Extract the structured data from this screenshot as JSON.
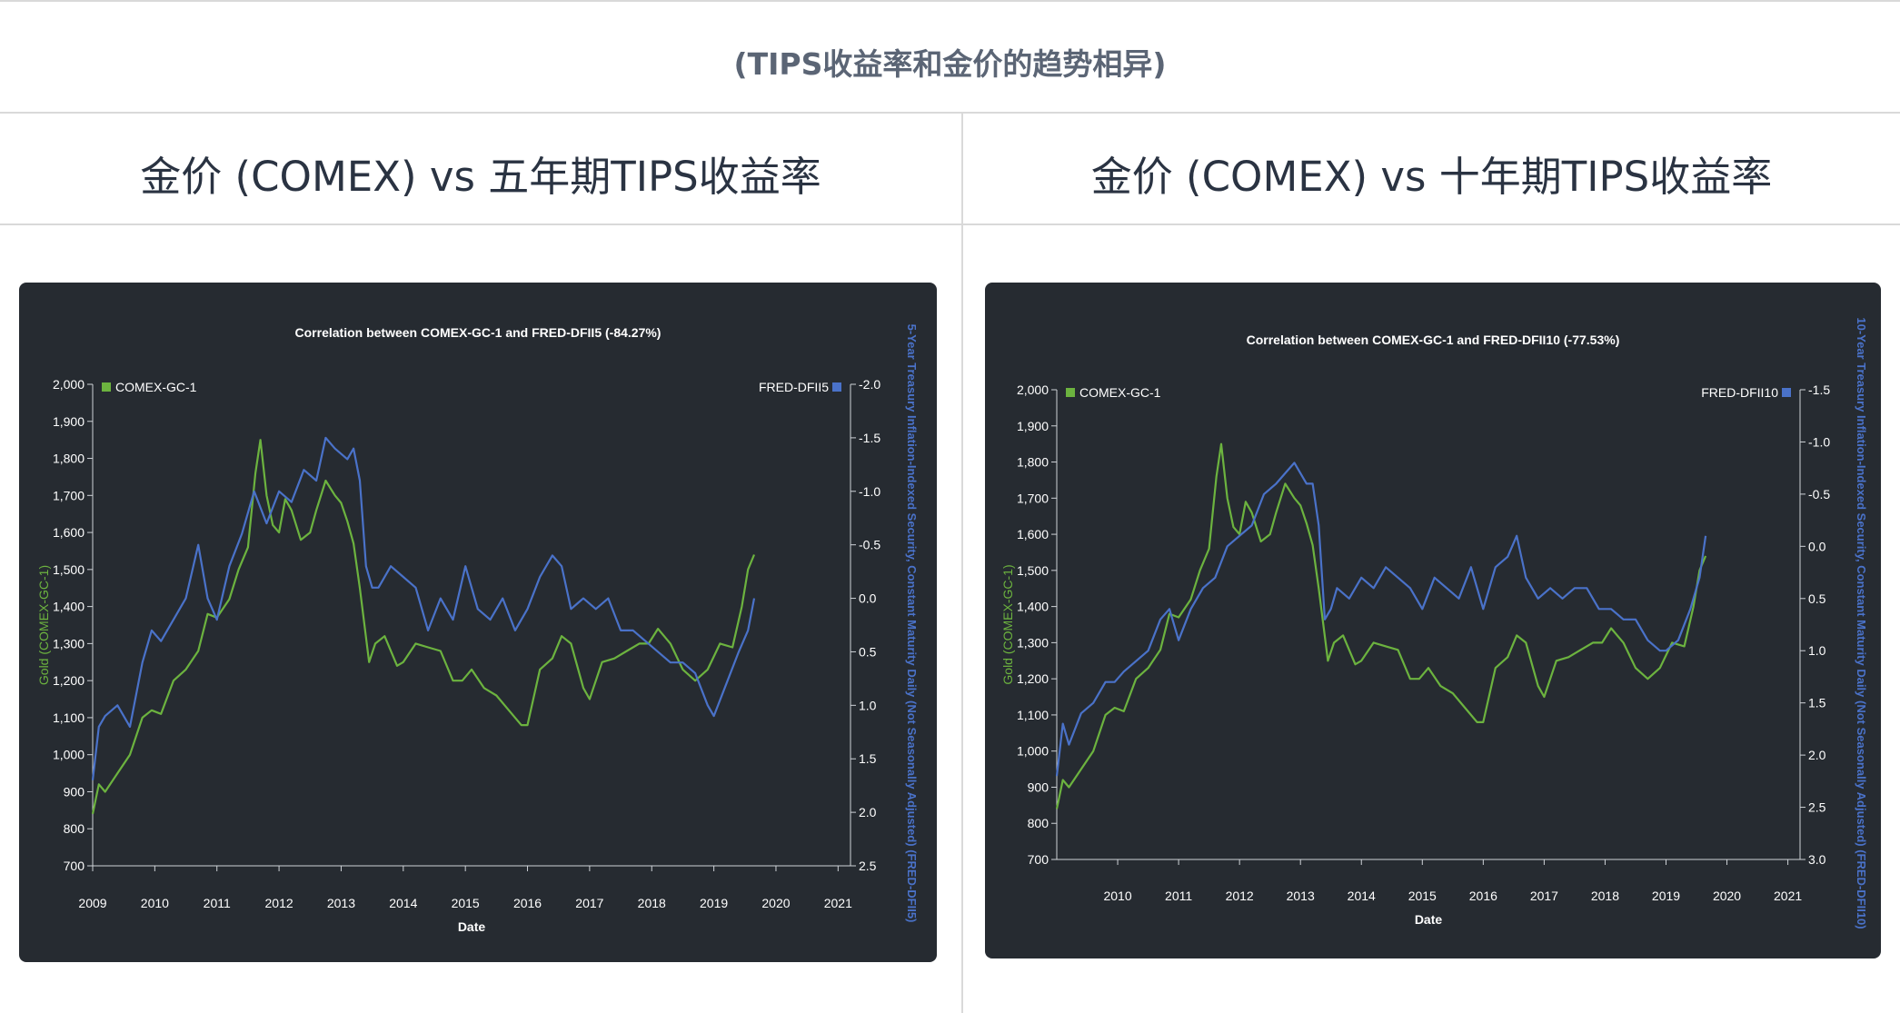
{
  "page": {
    "title": "(TIPS收益率和金价的趋势相异)"
  },
  "columns": [
    {
      "title": "金价 (COMEX) vs 五年期TIPS收益率"
    },
    {
      "title": "金价 (COMEX) vs 十年期TIPS收益率"
    }
  ],
  "colors": {
    "gold": "#6cb33f",
    "tips": "#4a72c9",
    "panel_bg": "#262b31",
    "axis_text": "#ffffff"
  },
  "chart_data": [
    {
      "type": "line",
      "title": "Correlation between COMEX-GC-1 and FRED-DFII5 (-84.27%)",
      "xlabel": "Date",
      "ylabel_left": "Gold (COMEX-GC-1)",
      "ylabel_right": "5-Year Treasury Inflation-Indexed Security, Constant Maturity Daily (Not Seasonally Adjusted) (FRED-DFII5)",
      "x_ticks": [
        "2009",
        "2010",
        "2011",
        "2012",
        "2013",
        "2014",
        "2015",
        "2016",
        "2017",
        "2018",
        "2019",
        "2020",
        "2021"
      ],
      "xlim": [
        2009,
        2021.2
      ],
      "y_left": {
        "ticks": [
          "2,000",
          "1,900",
          "1,800",
          "1,700",
          "1,600",
          "1,500",
          "1,400",
          "1,300",
          "1,200",
          "1,100",
          "1,000",
          "900",
          "800",
          "700"
        ],
        "min": 700,
        "max": 2000
      },
      "y_right": {
        "ticks": [
          "-2.0",
          "-1.5",
          "-1.0",
          "-0.5",
          "0.0",
          "0.5",
          "1.0",
          "1.5",
          "2.0",
          "2.5"
        ],
        "min": -2.0,
        "max": 2.5,
        "inverted": true
      },
      "legend": {
        "left": "COMEX-GC-1",
        "right": "FRED-DFII5",
        "placement": "top"
      },
      "series": [
        {
          "name": "COMEX-GC-1",
          "axis": "left",
          "x": [
            2009.0,
            2009.1,
            2009.2,
            2009.4,
            2009.6,
            2009.8,
            2009.95,
            2010.1,
            2010.3,
            2010.5,
            2010.7,
            2010.85,
            2011.0,
            2011.2,
            2011.35,
            2011.5,
            2011.62,
            2011.7,
            2011.8,
            2011.9,
            2012.0,
            2012.1,
            2012.2,
            2012.35,
            2012.5,
            2012.6,
            2012.75,
            2012.9,
            2013.0,
            2013.1,
            2013.2,
            2013.3,
            2013.45,
            2013.55,
            2013.7,
            2013.9,
            2014.0,
            2014.2,
            2014.4,
            2014.6,
            2014.8,
            2014.95,
            2015.1,
            2015.3,
            2015.5,
            2015.7,
            2015.9,
            2016.0,
            2016.2,
            2016.4,
            2016.55,
            2016.7,
            2016.9,
            2017.0,
            2017.2,
            2017.4,
            2017.6,
            2017.8,
            2017.95,
            2018.1,
            2018.3,
            2018.5,
            2018.7,
            2018.9,
            2019.1,
            2019.3,
            2019.45,
            2019.55,
            2019.65
          ],
          "values": [
            840,
            920,
            900,
            950,
            1000,
            1100,
            1120,
            1110,
            1200,
            1230,
            1280,
            1380,
            1370,
            1420,
            1500,
            1560,
            1760,
            1850,
            1700,
            1620,
            1600,
            1690,
            1660,
            1580,
            1600,
            1660,
            1740,
            1700,
            1680,
            1630,
            1570,
            1450,
            1250,
            1300,
            1320,
            1240,
            1250,
            1300,
            1290,
            1280,
            1200,
            1200,
            1230,
            1180,
            1160,
            1120,
            1080,
            1080,
            1230,
            1260,
            1320,
            1300,
            1180,
            1150,
            1250,
            1260,
            1280,
            1300,
            1300,
            1340,
            1300,
            1230,
            1200,
            1230,
            1300,
            1290,
            1400,
            1500,
            1540
          ]
        },
        {
          "name": "FRED-DFII5",
          "axis": "right",
          "x": [
            2009.0,
            2009.1,
            2009.2,
            2009.4,
            2009.6,
            2009.8,
            2009.95,
            2010.1,
            2010.3,
            2010.5,
            2010.7,
            2010.85,
            2011.0,
            2011.2,
            2011.4,
            2011.6,
            2011.8,
            2012.0,
            2012.2,
            2012.4,
            2012.6,
            2012.75,
            2012.9,
            2013.1,
            2013.2,
            2013.3,
            2013.4,
            2013.5,
            2013.6,
            2013.8,
            2014.0,
            2014.2,
            2014.4,
            2014.6,
            2014.8,
            2015.0,
            2015.2,
            2015.4,
            2015.6,
            2015.8,
            2016.0,
            2016.2,
            2016.4,
            2016.55,
            2016.7,
            2016.9,
            2017.1,
            2017.3,
            2017.5,
            2017.7,
            2017.9,
            2018.1,
            2018.3,
            2018.5,
            2018.7,
            2018.9,
            2019.0,
            2019.2,
            2019.4,
            2019.55,
            2019.65
          ],
          "values": [
            1.7,
            1.2,
            1.1,
            1.0,
            1.2,
            0.6,
            0.3,
            0.4,
            0.2,
            0.0,
            -0.5,
            0.0,
            0.2,
            -0.3,
            -0.6,
            -1.0,
            -0.7,
            -1.0,
            -0.9,
            -1.2,
            -1.1,
            -1.5,
            -1.4,
            -1.3,
            -1.4,
            -1.1,
            -0.3,
            -0.1,
            -0.1,
            -0.3,
            -0.2,
            -0.1,
            0.3,
            0.0,
            0.2,
            -0.3,
            0.1,
            0.2,
            0.0,
            0.3,
            0.1,
            -0.2,
            -0.4,
            -0.3,
            0.1,
            0.0,
            0.1,
            0.0,
            0.3,
            0.3,
            0.4,
            0.5,
            0.6,
            0.6,
            0.7,
            1.0,
            1.1,
            0.8,
            0.5,
            0.3,
            0.0
          ]
        }
      ]
    },
    {
      "type": "line",
      "title": "Correlation between COMEX-GC-1 and FRED-DFII10 (-77.53%)",
      "xlabel": "Date",
      "ylabel_left": "Gold (COMEX-GC-1)",
      "ylabel_right": "10-Year Treasury Inflation-Indexed Security, Constant Maturity Daily (Not Seasonally Adjusted) (FRED-DFII10)",
      "x_ticks": [
        "2010",
        "2011",
        "2012",
        "2013",
        "2014",
        "2015",
        "2016",
        "2017",
        "2018",
        "2019",
        "2020",
        "2021"
      ],
      "xlim": [
        2009.0,
        2021.2
      ],
      "y_left": {
        "ticks": [
          "2,000",
          "1,900",
          "1,800",
          "1,700",
          "1,600",
          "1,500",
          "1,400",
          "1,300",
          "1,200",
          "1,100",
          "1,000",
          "900",
          "800",
          "700"
        ],
        "min": 700,
        "max": 2000
      },
      "y_right": {
        "ticks": [
          "-1.5",
          "-1.0",
          "-0.5",
          "0.0",
          "0.5",
          "1.0",
          "1.5",
          "2.0",
          "2.5",
          "3.0"
        ],
        "min": -1.5,
        "max": 3.0,
        "inverted": true
      },
      "legend": {
        "left": "COMEX-GC-1",
        "right": "FRED-DFII10",
        "placement": "top"
      },
      "series": [
        {
          "name": "COMEX-GC-1",
          "axis": "left",
          "x": [
            2009.0,
            2009.1,
            2009.2,
            2009.4,
            2009.6,
            2009.8,
            2009.95,
            2010.1,
            2010.3,
            2010.5,
            2010.7,
            2010.85,
            2011.0,
            2011.2,
            2011.35,
            2011.5,
            2011.62,
            2011.7,
            2011.8,
            2011.9,
            2012.0,
            2012.1,
            2012.2,
            2012.35,
            2012.5,
            2012.6,
            2012.75,
            2012.9,
            2013.0,
            2013.1,
            2013.2,
            2013.3,
            2013.45,
            2013.55,
            2013.7,
            2013.9,
            2014.0,
            2014.2,
            2014.4,
            2014.6,
            2014.8,
            2014.95,
            2015.1,
            2015.3,
            2015.5,
            2015.7,
            2015.9,
            2016.0,
            2016.2,
            2016.4,
            2016.55,
            2016.7,
            2016.9,
            2017.0,
            2017.2,
            2017.4,
            2017.6,
            2017.8,
            2017.95,
            2018.1,
            2018.3,
            2018.5,
            2018.7,
            2018.9,
            2019.1,
            2019.3,
            2019.45,
            2019.55,
            2019.65
          ],
          "values": [
            840,
            920,
            900,
            950,
            1000,
            1100,
            1120,
            1110,
            1200,
            1230,
            1280,
            1380,
            1370,
            1420,
            1500,
            1560,
            1760,
            1850,
            1700,
            1620,
            1600,
            1690,
            1660,
            1580,
            1600,
            1660,
            1740,
            1700,
            1680,
            1630,
            1570,
            1450,
            1250,
            1300,
            1320,
            1240,
            1250,
            1300,
            1290,
            1280,
            1200,
            1200,
            1230,
            1180,
            1160,
            1120,
            1080,
            1080,
            1230,
            1260,
            1320,
            1300,
            1180,
            1150,
            1250,
            1260,
            1280,
            1300,
            1300,
            1340,
            1300,
            1230,
            1200,
            1230,
            1300,
            1290,
            1400,
            1500,
            1540
          ]
        },
        {
          "name": "FRED-DFII10",
          "axis": "right",
          "x": [
            2009.0,
            2009.1,
            2009.2,
            2009.4,
            2009.6,
            2009.8,
            2009.95,
            2010.1,
            2010.3,
            2010.5,
            2010.7,
            2010.85,
            2011.0,
            2011.2,
            2011.4,
            2011.6,
            2011.8,
            2012.0,
            2012.2,
            2012.4,
            2012.6,
            2012.75,
            2012.9,
            2013.1,
            2013.2,
            2013.3,
            2013.4,
            2013.5,
            2013.6,
            2013.8,
            2014.0,
            2014.2,
            2014.4,
            2014.6,
            2014.8,
            2015.0,
            2015.2,
            2015.4,
            2015.6,
            2015.8,
            2016.0,
            2016.2,
            2016.4,
            2016.55,
            2016.7,
            2016.9,
            2017.1,
            2017.3,
            2017.5,
            2017.7,
            2017.9,
            2018.1,
            2018.3,
            2018.5,
            2018.7,
            2018.9,
            2019.0,
            2019.2,
            2019.4,
            2019.55,
            2019.65
          ],
          "values": [
            2.2,
            1.7,
            1.9,
            1.6,
            1.5,
            1.3,
            1.3,
            1.2,
            1.1,
            1.0,
            0.7,
            0.6,
            0.9,
            0.6,
            0.4,
            0.3,
            0.0,
            -0.1,
            -0.2,
            -0.5,
            -0.6,
            -0.7,
            -0.8,
            -0.6,
            -0.6,
            -0.2,
            0.7,
            0.6,
            0.4,
            0.5,
            0.3,
            0.4,
            0.2,
            0.3,
            0.4,
            0.6,
            0.3,
            0.4,
            0.5,
            0.2,
            0.6,
            0.2,
            0.1,
            -0.1,
            0.3,
            0.5,
            0.4,
            0.5,
            0.4,
            0.4,
            0.6,
            0.6,
            0.7,
            0.7,
            0.9,
            1.0,
            1.0,
            0.9,
            0.6,
            0.3,
            -0.1
          ]
        }
      ]
    }
  ]
}
